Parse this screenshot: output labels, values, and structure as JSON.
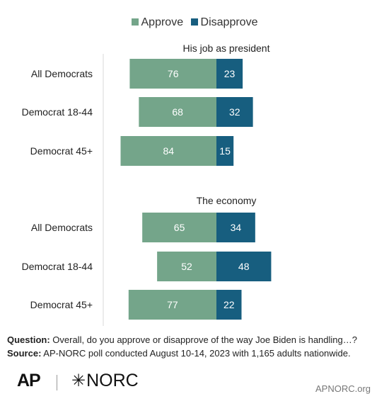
{
  "legend": {
    "approve": {
      "label": "Approve",
      "color": "#74a58a"
    },
    "disapprove": {
      "label": "Disapprove",
      "color": "#175e7f"
    }
  },
  "chart_data": {
    "type": "bar",
    "orientation": "horizontal-diverging",
    "series": [
      {
        "name": "Approve",
        "color": "#74a58a"
      },
      {
        "name": "Disapprove",
        "color": "#175e7f"
      }
    ],
    "groups": [
      {
        "title": "His job as president",
        "rows": [
          {
            "label": "All Democrats",
            "approve": 76,
            "disapprove": 23
          },
          {
            "label": "Democrat 18-44",
            "approve": 68,
            "disapprove": 32
          },
          {
            "label": "Democrat 45+",
            "approve": 84,
            "disapprove": 15
          }
        ]
      },
      {
        "title": "The economy",
        "rows": [
          {
            "label": "All Democrats",
            "approve": 65,
            "disapprove": 34
          },
          {
            "label": "Democrat 18-44",
            "approve": 52,
            "disapprove": 48
          },
          {
            "label": "Democrat 45+",
            "approve": 77,
            "disapprove": 22
          }
        ]
      }
    ]
  },
  "footer": {
    "question_label": "Question:",
    "question_text": " Overall, do you approve or disapprove of the way Joe Biden is handling…?",
    "source_label": "Source:",
    "source_text": " AP-NORC poll conducted August 10-14, 2023 with 1,165 adults nationwide."
  },
  "logos": {
    "ap": "AP",
    "norc_star": "✳",
    "norc": "NORC",
    "site": "APNORC.org"
  }
}
